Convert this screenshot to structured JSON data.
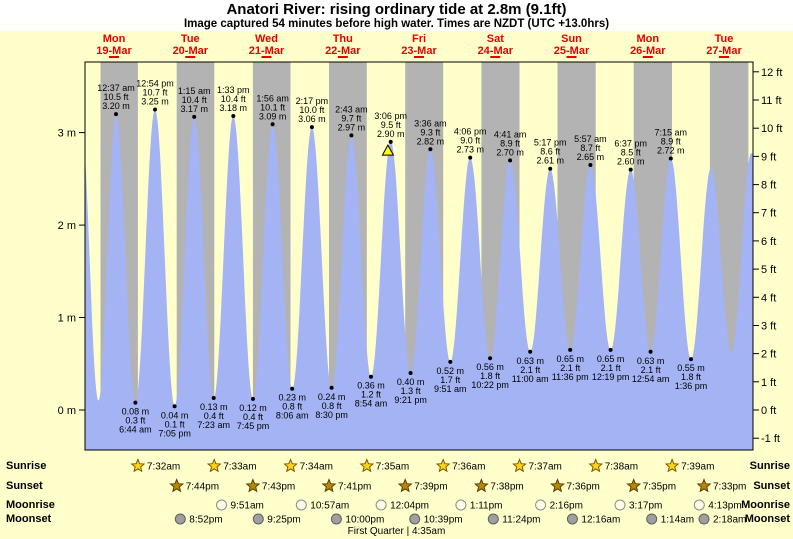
{
  "title": "Anatori River: rising  ordinary tide at 2.8m (9.1ft)",
  "subtitle": "Image captured 54 minutes before high water. Times are NZDT (UTC +13.0hrs)",
  "colors": {
    "page_bg": "#ffffcc",
    "night": "#b3b3b3",
    "tide": "#a3b3f3",
    "day_label": "#e60000",
    "marker_fill": "#ffff00"
  },
  "days": [
    {
      "dow": "Mon",
      "date": "19-Mar"
    },
    {
      "dow": "Tue",
      "date": "20-Mar"
    },
    {
      "dow": "Wed",
      "date": "21-Mar"
    },
    {
      "dow": "Thu",
      "date": "22-Mar"
    },
    {
      "dow": "Fri",
      "date": "23-Mar"
    },
    {
      "dow": "Sat",
      "date": "24-Mar"
    },
    {
      "dow": "Sun",
      "date": "25-Mar"
    },
    {
      "dow": "Mon",
      "date": "26-Mar"
    },
    {
      "dow": "Tue",
      "date": "27-Mar"
    }
  ],
  "chart_data": {
    "type": "area",
    "title": "Anatori River tide height",
    "ylim_m": [
      -0.46,
      3.76
    ],
    "axes": {
      "left_unit": "m",
      "right_unit": "ft",
      "left_labels": [
        "3 m",
        "2 m",
        "1 m",
        "0 m"
      ],
      "right_labels": [
        "12 ft",
        "11 ft",
        "10 ft",
        "9 ft",
        "8 ft",
        "7 ft",
        "6 ft",
        "5 ft",
        "4 ft",
        "3 ft",
        "2 ft",
        "1 ft",
        "0 ft",
        "-1 ft"
      ]
    },
    "highs": [
      {
        "time": "12:37 am",
        "ft": "10.5 ft",
        "m": "3.20 m",
        "t": 0.62,
        "h": 3.2
      },
      {
        "time": "12:54 pm",
        "ft": "10.7 ft",
        "m": "3.25 m",
        "t": 12.9,
        "h": 3.25
      },
      {
        "time": "1:15 am",
        "ft": "10.4 ft",
        "m": "3.17 m",
        "t": 25.25,
        "h": 3.17
      },
      {
        "time": "1:33 pm",
        "ft": "10.4 ft",
        "m": "3.18 m",
        "t": 37.55,
        "h": 3.18
      },
      {
        "time": "1:56 am",
        "ft": "10.1 ft",
        "m": "3.09 m",
        "t": 49.93,
        "h": 3.09
      },
      {
        "time": "2:17 pm",
        "ft": "10.0 ft",
        "m": "3.06 m",
        "t": 62.28,
        "h": 3.06
      },
      {
        "time": "2:43 am",
        "ft": "9.7 ft",
        "m": "2.97 m",
        "t": 74.72,
        "h": 2.97
      },
      {
        "time": "3:06 pm",
        "ft": "9.5 ft",
        "m": "2.90 m",
        "t": 87.1,
        "h": 2.9
      },
      {
        "time": "3:36 am",
        "ft": "9.3 ft",
        "m": "2.82 m",
        "t": 99.6,
        "h": 2.82
      },
      {
        "time": "4:06 pm",
        "ft": "9.0 ft",
        "m": "2.73 m",
        "t": 112.1,
        "h": 2.73
      },
      {
        "time": "4:41 am",
        "ft": "8.9 ft",
        "m": "2.70 m",
        "t": 124.68,
        "h": 2.7
      },
      {
        "time": "5:17 pm",
        "ft": "8.6 ft",
        "m": "2.61 m",
        "t": 137.28,
        "h": 2.61
      },
      {
        "time": "5:57 am",
        "ft": "8.7 ft",
        "m": "2.65 m",
        "t": 149.95,
        "h": 2.65
      },
      {
        "time": "6:37 pm",
        "ft": "8.5 ft",
        "m": "2.60 m",
        "t": 162.62,
        "h": 2.6
      },
      {
        "time": "7:15 am",
        "ft": "8.9 ft",
        "m": "2.72 m",
        "t": 175.25,
        "h": 2.72
      }
    ],
    "lows": [
      {
        "m": "0.08 m",
        "ft": "0.3 ft",
        "time": "6:44 am",
        "t": 6.73,
        "h": 0.08
      },
      {
        "m": "0.04 m",
        "ft": "0.1 ft",
        "time": "7:05 pm",
        "t": 19.08,
        "h": 0.04
      },
      {
        "m": "0.13 m",
        "ft": "0.4 ft",
        "time": "7:23 am",
        "t": 31.38,
        "h": 0.13
      },
      {
        "m": "0.12 m",
        "ft": "0.4 ft",
        "time": "7:45 pm",
        "t": 43.75,
        "h": 0.12
      },
      {
        "m": "0.23 m",
        "ft": "0.8 ft",
        "time": "8:06 am",
        "t": 56.1,
        "h": 0.23
      },
      {
        "m": "0.24 m",
        "ft": "0.8 ft",
        "time": "8:30 pm",
        "t": 68.5,
        "h": 0.24
      },
      {
        "m": "0.36 m",
        "ft": "1.2 ft",
        "time": "8:54 am",
        "t": 80.9,
        "h": 0.36
      },
      {
        "m": "0.40 m",
        "ft": "1.3 ft",
        "time": "9:21 pm",
        "t": 93.35,
        "h": 0.4
      },
      {
        "m": "0.52 m",
        "ft": "1.7 ft",
        "time": "9:51 am",
        "t": 105.85,
        "h": 0.52
      },
      {
        "m": "0.56 m",
        "ft": "1.8 ft",
        "time": "10:22 pm",
        "t": 118.37,
        "h": 0.56
      },
      {
        "m": "0.63 m",
        "ft": "2.1 ft",
        "time": "11:00 am",
        "t": 131.0,
        "h": 0.63
      },
      {
        "m": "0.65 m",
        "ft": "2.1 ft",
        "time": "11:36 pm",
        "t": 143.6,
        "h": 0.65
      },
      {
        "m": "0.65 m",
        "ft": "2.1 ft",
        "time": "12:19 pm",
        "t": 156.32,
        "h": 0.65
      },
      {
        "m": "0.63 m",
        "ft": "2.1 ft",
        "time": "12:54 am",
        "t": 168.9,
        "h": 0.63
      },
      {
        "m": "0.55 m",
        "ft": "1.8 ft",
        "time": "1:36 pm",
        "t": 181.6,
        "h": 0.55
      }
    ],
    "edge_extremes": [
      {
        "t": -10.5,
        "h": 3.2
      },
      {
        "t": -4.9,
        "h": 0.1
      },
      {
        "t": 187.93,
        "h": 2.62
      },
      {
        "t": 194.3,
        "h": 0.62
      },
      {
        "t": 200.62,
        "h": 2.78
      },
      {
        "t": 207.0,
        "h": 0.5
      }
    ],
    "night_bands": [
      [
        -4.25,
        7.53
      ],
      [
        19.73,
        31.55
      ],
      [
        43.72,
        55.57
      ],
      [
        67.68,
        79.58
      ],
      [
        91.65,
        103.6
      ],
      [
        115.63,
        127.62
      ],
      [
        139.6,
        151.63
      ],
      [
        163.58,
        175.65
      ],
      [
        187.55,
        199.67
      ]
    ],
    "current_marker": {
      "t": 86.2,
      "h": 2.8
    }
  },
  "sun_moon": {
    "rows": [
      {
        "label": "Sunrise",
        "icon": "sun",
        "entries": [
          {
            "time": "7:32am",
            "t": 7.53
          },
          {
            "time": "7:33am",
            "t": 31.55
          },
          {
            "time": "7:34am",
            "t": 55.57
          },
          {
            "time": "7:35am",
            "t": 79.58
          },
          {
            "time": "7:36am",
            "t": 103.6
          },
          {
            "time": "7:37am",
            "t": 127.62
          },
          {
            "time": "7:38am",
            "t": 151.63
          },
          {
            "time": "7:39am",
            "t": 175.65
          }
        ]
      },
      {
        "label": "Sunset",
        "icon": "sun-dark",
        "entries": [
          {
            "time": "7:44pm",
            "t": 19.73
          },
          {
            "time": "7:43pm",
            "t": 43.72
          },
          {
            "time": "7:41pm",
            "t": 67.68
          },
          {
            "time": "7:39pm",
            "t": 91.65
          },
          {
            "time": "7:38pm",
            "t": 115.63
          },
          {
            "time": "7:36pm",
            "t": 139.6
          },
          {
            "time": "7:35pm",
            "t": 163.58
          },
          {
            "time": "7:33pm",
            "t": 187.55
          }
        ]
      },
      {
        "label": "Moonrise",
        "icon": "moon-light",
        "entries": [
          {
            "time": "9:51am",
            "t": 33.85
          },
          {
            "time": "10:57am",
            "t": 58.95
          },
          {
            "time": "12:04pm",
            "t": 84.07
          },
          {
            "time": "1:11pm",
            "t": 109.18
          },
          {
            "time": "2:16pm",
            "t": 134.27
          },
          {
            "time": "3:17pm",
            "t": 159.28
          },
          {
            "time": "4:13pm",
            "t": 184.22
          }
        ]
      },
      {
        "label": "Moonset",
        "icon": "moon-dark",
        "entries": [
          {
            "time": "8:52pm",
            "t": 20.87
          },
          {
            "time": "9:25pm",
            "t": 45.42
          },
          {
            "time": "10:00pm",
            "t": 70.0
          },
          {
            "time": "10:39pm",
            "t": 94.65
          },
          {
            "time": "11:24pm",
            "t": 119.4
          },
          {
            "time": "12:16am",
            "t": 144.27
          },
          {
            "time": "1:14am",
            "t": 169.23
          },
          {
            "time": "2:18am",
            "t": 194.3
          }
        ]
      }
    ],
    "moon_phase": "First Quarter | 4:35am"
  }
}
